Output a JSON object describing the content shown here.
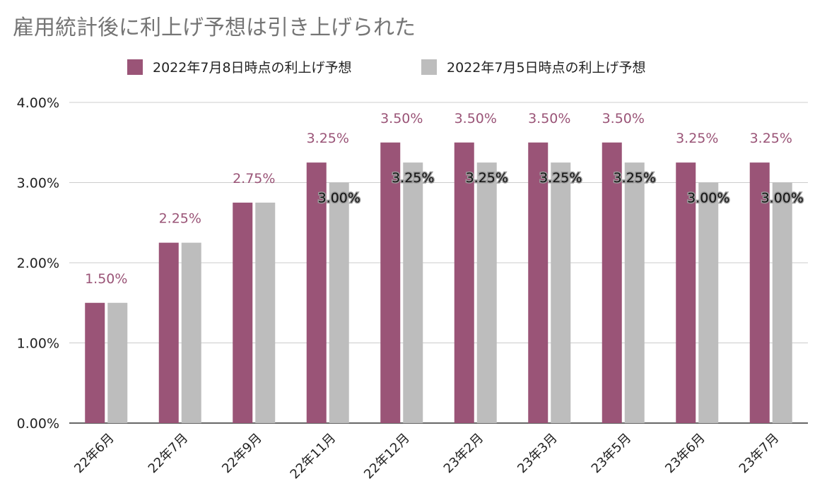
{
  "chart_data": {
    "type": "bar",
    "title": "雇用統計後に利上げ予想は引き上げられた",
    "categories": [
      "22年6月",
      "22年7月",
      "22年9月",
      "22年11月",
      "22年12月",
      "23年2月",
      "23年3月",
      "23年5月",
      "23年6月",
      "23年7月"
    ],
    "series": [
      {
        "name": "2022年7月8日時点の利上げ予想",
        "color": "#9a5477",
        "values": [
          1.5,
          2.25,
          2.75,
          3.25,
          3.5,
          3.5,
          3.5,
          3.5,
          3.25,
          3.25
        ],
        "data_labels": [
          "1.50%",
          "2.25%",
          "2.75%",
          "3.25%",
          "3.50%",
          "3.50%",
          "3.50%",
          "3.50%",
          "3.25%",
          "3.25%"
        ]
      },
      {
        "name": "2022年7月5日時点の利上げ予想",
        "color": "#bdbdbd",
        "values": [
          1.5,
          2.25,
          2.75,
          3.0,
          3.25,
          3.25,
          3.25,
          3.25,
          3.0,
          3.0
        ],
        "data_labels": [
          "",
          "",
          "",
          "3.00%",
          "3.25%",
          "3.25%",
          "3.25%",
          "3.25%",
          "3.00%",
          "3.00%"
        ]
      }
    ],
    "y_ticks": [
      "0.00%",
      "1.00%",
      "2.00%",
      "3.00%",
      "4.00%"
    ],
    "ylim": [
      0,
      4
    ],
    "xlabel": "",
    "ylabel": "",
    "grid": true,
    "legend_position": "top"
  }
}
